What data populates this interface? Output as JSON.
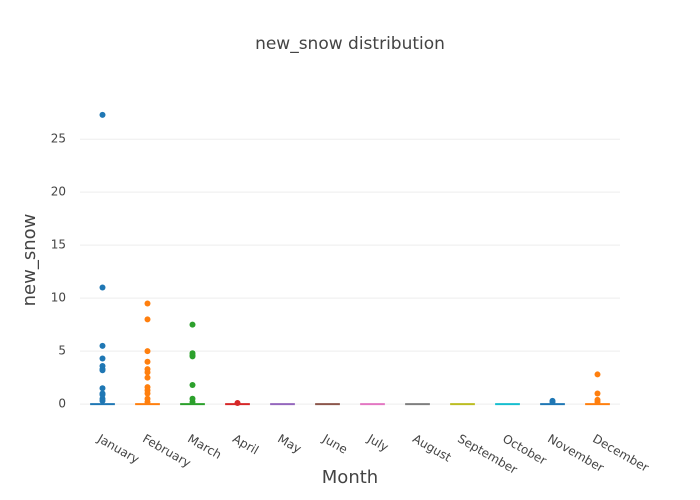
{
  "chart_data": {
    "type": "box",
    "title": "new_snow distribution",
    "x_label": "Month",
    "y_label": "new_snow",
    "categories": [
      "January",
      "February",
      "March",
      "April",
      "May",
      "June",
      "July",
      "August",
      "September",
      "October",
      "November",
      "December"
    ],
    "boxes": [
      {
        "color": "#1f77b4",
        "lower": 0,
        "q1": 0,
        "median": 0,
        "q3": 0,
        "upper": 0,
        "outliers": [
          27.3,
          11,
          5.5,
          4.3,
          3.6,
          3.3,
          3.2,
          1.5,
          1.0,
          0.9,
          0.5,
          0.3
        ]
      },
      {
        "color": "#ff7f0e",
        "lower": 0,
        "q1": 0,
        "median": 0,
        "q3": 0,
        "upper": 0,
        "outliers": [
          9.5,
          8.0,
          5.0,
          4.0,
          3.3,
          3.0,
          2.5,
          1.6,
          1.3,
          1.0,
          0.5,
          0.2
        ]
      },
      {
        "color": "#2ca02c",
        "lower": 0,
        "q1": 0,
        "median": 0,
        "q3": 0,
        "upper": 0,
        "outliers": [
          7.5,
          4.8,
          4.6,
          4.5,
          1.8,
          0.5,
          0.2
        ]
      },
      {
        "color": "#d62728",
        "lower": 0,
        "q1": 0,
        "median": 0,
        "q3": 0,
        "upper": 0,
        "outliers": [
          0.1
        ]
      },
      {
        "color": "#9467bd",
        "lower": 0,
        "q1": 0,
        "median": 0,
        "q3": 0,
        "upper": 0,
        "outliers": []
      },
      {
        "color": "#8c564b",
        "lower": 0,
        "q1": 0,
        "median": 0,
        "q3": 0,
        "upper": 0,
        "outliers": []
      },
      {
        "color": "#e377c2",
        "lower": 0,
        "q1": 0,
        "median": 0,
        "q3": 0,
        "upper": 0,
        "outliers": []
      },
      {
        "color": "#7f7f7f",
        "lower": 0,
        "q1": 0,
        "median": 0,
        "q3": 0,
        "upper": 0,
        "outliers": []
      },
      {
        "color": "#bcbd22",
        "lower": 0,
        "q1": 0,
        "median": 0,
        "q3": 0,
        "upper": 0,
        "outliers": []
      },
      {
        "color": "#17becf",
        "lower": 0,
        "q1": 0,
        "median": 0,
        "q3": 0,
        "upper": 0,
        "outliers": []
      },
      {
        "color": "#1f77b4",
        "lower": 0,
        "q1": 0,
        "median": 0,
        "q3": 0,
        "upper": 0,
        "outliers": [
          0.3,
          0.2
        ]
      },
      {
        "color": "#ff7f0e",
        "lower": 0,
        "q1": 0,
        "median": 0,
        "q3": 0,
        "upper": 0,
        "outliers": [
          2.8,
          1.0,
          0.4,
          0.2
        ]
      }
    ],
    "ylim": [
      -1.5,
      28.7
    ],
    "yticks": [
      0,
      5,
      10,
      15,
      20,
      25
    ],
    "grid": true
  }
}
